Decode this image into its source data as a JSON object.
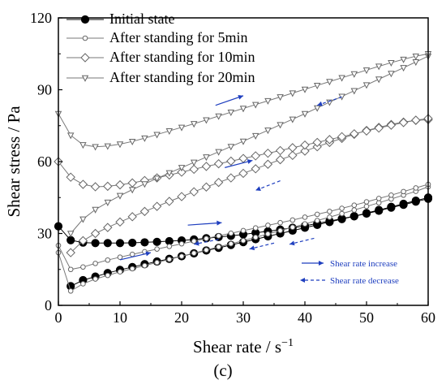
{
  "panel_label": "(c)",
  "chart_data": {
    "type": "line",
    "xlabel": "Shear rate / s",
    "xlabel_superscript": "−1",
    "ylabel": "Shear stress / Pa",
    "xlim": [
      0,
      60
    ],
    "ylim": [
      0,
      120
    ],
    "x_ticks": [
      0,
      10,
      20,
      30,
      40,
      50,
      60
    ],
    "y_ticks": [
      0,
      30,
      60,
      90,
      120
    ],
    "x_tick_labels": [
      "0",
      "10",
      "20",
      "30",
      "40",
      "50",
      "60"
    ],
    "y_tick_labels": [
      "0",
      "30",
      "60",
      "90",
      "120"
    ],
    "grid": false,
    "legend_position": "top-left",
    "series": [
      {
        "name": "Initial state",
        "marker": "filled-circle",
        "up": [
          [
            2,
            8
          ],
          [
            4,
            10.5
          ],
          [
            6,
            12
          ],
          [
            8,
            13.5
          ],
          [
            10,
            14.8
          ],
          [
            12,
            16
          ],
          [
            14,
            17.2
          ],
          [
            16,
            18.3
          ],
          [
            18,
            19.4
          ],
          [
            20,
            20.5
          ],
          [
            22,
            21.7
          ],
          [
            24,
            22.9
          ],
          [
            26,
            24
          ],
          [
            28,
            25.2
          ],
          [
            30,
            26.4
          ],
          [
            32,
            27.6
          ],
          [
            34,
            28.8
          ],
          [
            36,
            30
          ],
          [
            38,
            31.2
          ],
          [
            40,
            32.4
          ],
          [
            42,
            33.6
          ],
          [
            44,
            34.8
          ],
          [
            46,
            36
          ],
          [
            48,
            37.2
          ],
          [
            50,
            38.5
          ],
          [
            52,
            39.8
          ],
          [
            54,
            41.1
          ],
          [
            56,
            42.4
          ],
          [
            58,
            43.7
          ],
          [
            60,
            45
          ]
        ],
        "down": [
          [
            60,
            44.5
          ],
          [
            58,
            43.3
          ],
          [
            56,
            42
          ],
          [
            54,
            40.8
          ],
          [
            52,
            39.5
          ],
          [
            50,
            38.3
          ],
          [
            48,
            37.2
          ],
          [
            46,
            36.2
          ],
          [
            44,
            35.2
          ],
          [
            42,
            34.2
          ],
          [
            40,
            33.2
          ],
          [
            38,
            32.4
          ],
          [
            36,
            31.6
          ],
          [
            34,
            30.9
          ],
          [
            32,
            30.3
          ],
          [
            30,
            29.6
          ],
          [
            28,
            29
          ],
          [
            26,
            28.5
          ],
          [
            24,
            28
          ],
          [
            22,
            27.5
          ],
          [
            20,
            27.1
          ],
          [
            18,
            26.8
          ],
          [
            16,
            26.5
          ],
          [
            14,
            26.3
          ],
          [
            12,
            26.1
          ],
          [
            10,
            26
          ],
          [
            8,
            26
          ],
          [
            6,
            26
          ],
          [
            4,
            26.2
          ],
          [
            2,
            27.2
          ],
          [
            0,
            33
          ]
        ]
      },
      {
        "name": "After standing for 5min",
        "marker": "open-circle",
        "up": [
          [
            0,
            22
          ],
          [
            2,
            6
          ],
          [
            4,
            9
          ],
          [
            6,
            11
          ],
          [
            8,
            12.5
          ],
          [
            10,
            14
          ],
          [
            12,
            15.3
          ],
          [
            14,
            16.6
          ],
          [
            16,
            17.9
          ],
          [
            18,
            19.2
          ],
          [
            20,
            20.5
          ],
          [
            22,
            21.8
          ],
          [
            24,
            23.1
          ],
          [
            26,
            24.4
          ],
          [
            28,
            25.7
          ],
          [
            30,
            27
          ],
          [
            32,
            28.4
          ],
          [
            34,
            29.8
          ],
          [
            36,
            31.2
          ],
          [
            38,
            32.6
          ],
          [
            40,
            34
          ],
          [
            42,
            35.4
          ],
          [
            44,
            36.8
          ],
          [
            46,
            38.3
          ],
          [
            48,
            39.8
          ],
          [
            50,
            41.3
          ],
          [
            52,
            42.8
          ],
          [
            54,
            44.4
          ],
          [
            56,
            46
          ],
          [
            58,
            47.6
          ],
          [
            60,
            49.5
          ]
        ],
        "down": [
          [
            60,
            50.5
          ],
          [
            58,
            49
          ],
          [
            56,
            47.5
          ],
          [
            54,
            46
          ],
          [
            52,
            44.6
          ],
          [
            50,
            43.2
          ],
          [
            48,
            41.8
          ],
          [
            46,
            40.5
          ],
          [
            44,
            39.2
          ],
          [
            42,
            38
          ],
          [
            40,
            36.8
          ],
          [
            38,
            35.6
          ],
          [
            36,
            34.5
          ],
          [
            34,
            33.4
          ],
          [
            32,
            32.3
          ],
          [
            30,
            31.2
          ],
          [
            28,
            30.1
          ],
          [
            26,
            29
          ],
          [
            24,
            27.9
          ],
          [
            22,
            26.8
          ],
          [
            20,
            25.7
          ],
          [
            18,
            24.6
          ],
          [
            16,
            23.5
          ],
          [
            14,
            22.4
          ],
          [
            12,
            21.3
          ],
          [
            10,
            20.1
          ],
          [
            8,
            18.9
          ],
          [
            6,
            17.5
          ],
          [
            4,
            16
          ],
          [
            2,
            15
          ],
          [
            0,
            25
          ]
        ]
      },
      {
        "name": "After standing for 10min",
        "marker": "open-diamond",
        "up": [
          [
            2,
            22
          ],
          [
            4,
            27
          ],
          [
            6,
            30
          ],
          [
            8,
            32.5
          ],
          [
            10,
            34.8
          ],
          [
            12,
            37
          ],
          [
            14,
            39.2
          ],
          [
            16,
            41.3
          ],
          [
            18,
            43.4
          ],
          [
            20,
            45.4
          ],
          [
            22,
            47.4
          ],
          [
            24,
            49.4
          ],
          [
            26,
            51.3
          ],
          [
            28,
            53.2
          ],
          [
            30,
            55.1
          ],
          [
            32,
            57
          ],
          [
            34,
            58.9
          ],
          [
            36,
            60.8
          ],
          [
            38,
            62.6
          ],
          [
            40,
            64.4
          ],
          [
            42,
            66.2
          ],
          [
            44,
            68
          ],
          [
            46,
            69.7
          ],
          [
            48,
            71.4
          ],
          [
            50,
            73
          ],
          [
            52,
            74.3
          ],
          [
            54,
            75.5
          ],
          [
            56,
            76.5
          ],
          [
            58,
            77.2
          ],
          [
            60,
            77.5
          ]
        ],
        "down": [
          [
            60,
            78
          ],
          [
            58,
            77.3
          ],
          [
            56,
            76.3
          ],
          [
            54,
            75.2
          ],
          [
            52,
            74
          ],
          [
            50,
            72.8
          ],
          [
            48,
            71.6
          ],
          [
            46,
            70.4
          ],
          [
            44,
            69.2
          ],
          [
            42,
            68
          ],
          [
            40,
            66.9
          ],
          [
            38,
            65.8
          ],
          [
            36,
            64.6
          ],
          [
            34,
            63.5
          ],
          [
            32,
            62.4
          ],
          [
            30,
            61.3
          ],
          [
            28,
            60.2
          ],
          [
            26,
            59.1
          ],
          [
            24,
            58
          ],
          [
            22,
            56.8
          ],
          [
            20,
            55.6
          ],
          [
            18,
            54.4
          ],
          [
            16,
            53.2
          ],
          [
            14,
            52.1
          ],
          [
            12,
            51.1
          ],
          [
            10,
            50.3
          ],
          [
            8,
            49.7
          ],
          [
            6,
            49.5
          ],
          [
            4,
            50.5
          ],
          [
            2,
            53.5
          ],
          [
            0,
            60
          ]
        ]
      },
      {
        "name": "After standing for 20min",
        "marker": "open-triangle-down",
        "up": [
          [
            2,
            30
          ],
          [
            4,
            36
          ],
          [
            6,
            40
          ],
          [
            8,
            43
          ],
          [
            10,
            45.8
          ],
          [
            12,
            48.3
          ],
          [
            14,
            50.7
          ],
          [
            16,
            53
          ],
          [
            18,
            55.3
          ],
          [
            20,
            57.5
          ],
          [
            22,
            59.7
          ],
          [
            24,
            61.9
          ],
          [
            26,
            64.1
          ],
          [
            28,
            66.3
          ],
          [
            30,
            68.5
          ],
          [
            32,
            70.8
          ],
          [
            34,
            73.1
          ],
          [
            36,
            75.4
          ],
          [
            38,
            77.7
          ],
          [
            40,
            80
          ],
          [
            42,
            82.4
          ],
          [
            44,
            84.8
          ],
          [
            46,
            87.2
          ],
          [
            48,
            89.6
          ],
          [
            50,
            92
          ],
          [
            52,
            94.4
          ],
          [
            54,
            96.8
          ],
          [
            56,
            99.2
          ],
          [
            58,
            101.6
          ],
          [
            60,
            104
          ]
        ],
        "down": [
          [
            60,
            105
          ],
          [
            58,
            104
          ],
          [
            56,
            102.7
          ],
          [
            54,
            101.3
          ],
          [
            52,
            99.8
          ],
          [
            50,
            98.2
          ],
          [
            48,
            96.6
          ],
          [
            46,
            95
          ],
          [
            44,
            93.4
          ],
          [
            42,
            91.8
          ],
          [
            40,
            90.2
          ],
          [
            38,
            88.6
          ],
          [
            36,
            87
          ],
          [
            34,
            85.4
          ],
          [
            32,
            83.8
          ],
          [
            30,
            82.2
          ],
          [
            28,
            80.6
          ],
          [
            26,
            79
          ],
          [
            24,
            77.4
          ],
          [
            22,
            75.8
          ],
          [
            20,
            74.3
          ],
          [
            18,
            72.8
          ],
          [
            16,
            71.3
          ],
          [
            14,
            69.8
          ],
          [
            12,
            68.4
          ],
          [
            10,
            67.3
          ],
          [
            8,
            66.5
          ],
          [
            6,
            66.2
          ],
          [
            4,
            67
          ],
          [
            2,
            71
          ],
          [
            0,
            80
          ]
        ]
      }
    ],
    "direction_notes": {
      "increase": "Shear rate increase",
      "decrease": "Shear rate decrease",
      "color": "#1f3fbf"
    },
    "direction_arrows": [
      {
        "type": "increase",
        "from": [
          25.5,
          83.5
        ],
        "to": [
          30,
          87.5
        ]
      },
      {
        "type": "decrease",
        "from": [
          46,
          87
        ],
        "to": [
          42,
          83.5
        ]
      },
      {
        "type": "increase",
        "from": [
          27,
          57.5
        ],
        "to": [
          31.5,
          60.5
        ]
      },
      {
        "type": "decrease",
        "from": [
          36,
          52
        ],
        "to": [
          32,
          48
        ]
      },
      {
        "type": "increase",
        "from": [
          21,
          33.5
        ],
        "to": [
          26.5,
          34.5
        ]
      },
      {
        "type": "decrease",
        "from": [
          35,
          26
        ],
        "to": [
          31,
          23.5
        ]
      },
      {
        "type": "increase",
        "from": [
          10,
          19
        ],
        "to": [
          15,
          22
        ]
      },
      {
        "type": "decrease",
        "from": [
          26,
          27.5
        ],
        "to": [
          22,
          25.5
        ]
      },
      {
        "type": "decrease",
        "from": [
          41.5,
          28
        ],
        "to": [
          37.5,
          25.5
        ]
      }
    ]
  }
}
